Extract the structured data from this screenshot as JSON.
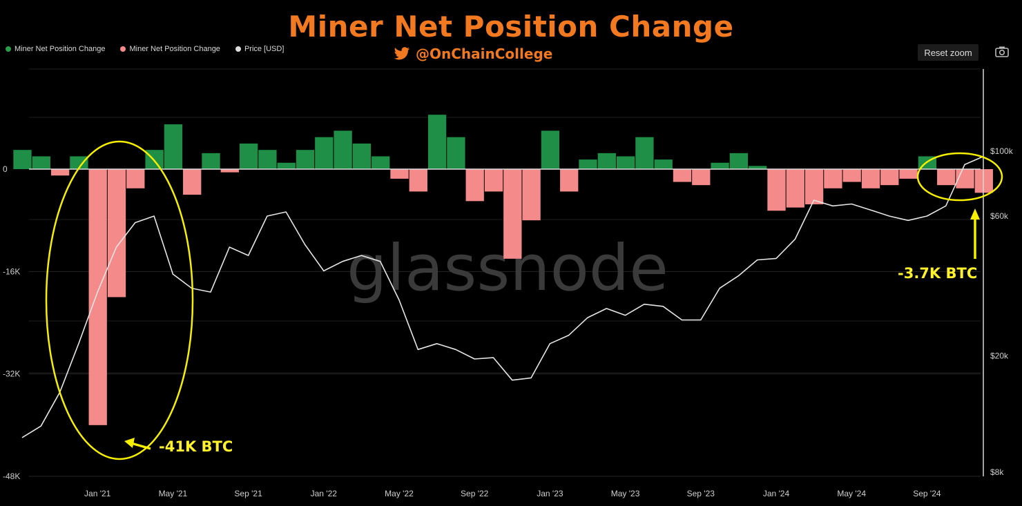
{
  "header": {
    "title": "Miner Net Position Change",
    "handle": "@OnChainCollege",
    "reset_zoom": "Reset zoom"
  },
  "legend": [
    {
      "label": "Miner Net Position Change",
      "color": "#2a9d4a"
    },
    {
      "label": "Miner Net Position Change",
      "color": "#f48a8a"
    },
    {
      "label": "Price [USD]",
      "color": "#dddddd"
    }
  ],
  "watermark": "glassnode",
  "annotations": {
    "left": "-41K BTC",
    "right": "-3.7K BTC"
  },
  "colors": {
    "positive": "#1f8f47",
    "negative": "#f48a8a",
    "price": "#e6e6e6",
    "highlight": "#f6f000",
    "title": "#f37921"
  },
  "chart_data": {
    "type": "bar",
    "title": "Miner Net Position Change",
    "x_ticks": [
      "Jan '21",
      "May '21",
      "Sep '21",
      "Jan '22",
      "May '22",
      "Sep '22",
      "Jan '23",
      "May '23",
      "Sep '23",
      "Jan '24",
      "May '24",
      "Sep '24"
    ],
    "y_left_ticks": [
      "0",
      "-16K",
      "-32K",
      "-48K"
    ],
    "y_left_range": [
      -48000,
      14000
    ],
    "y_right_ticks": [
      "$100k",
      "$60k",
      "$20k",
      "$8k"
    ],
    "y_right_scale": "log",
    "series": [
      {
        "name": "Miner Net Position Change",
        "unit": "BTC",
        "dates": [
          "2020-09",
          "2020-10",
          "2020-11",
          "2020-12",
          "2021-01",
          "2021-02",
          "2021-03",
          "2021-04",
          "2021-05",
          "2021-06",
          "2021-07",
          "2021-08",
          "2021-09",
          "2021-10",
          "2021-11",
          "2021-12",
          "2022-01",
          "2022-02",
          "2022-03",
          "2022-04",
          "2022-05",
          "2022-06",
          "2022-07",
          "2022-08",
          "2022-09",
          "2022-10",
          "2022-11",
          "2022-12",
          "2023-01",
          "2023-02",
          "2023-03",
          "2023-04",
          "2023-05",
          "2023-06",
          "2023-07",
          "2023-08",
          "2023-09",
          "2023-10",
          "2023-11",
          "2023-12",
          "2024-01",
          "2024-02",
          "2024-03",
          "2024-04",
          "2024-05",
          "2024-06",
          "2024-07",
          "2024-08",
          "2024-09",
          "2024-10",
          "2024-11",
          "2024-12"
        ],
        "values": [
          3000,
          2000,
          -1000,
          2000,
          -40000,
          -20000,
          -3000,
          3000,
          7000,
          -4000,
          2500,
          -500,
          4000,
          3000,
          1000,
          3000,
          5000,
          6000,
          4000,
          2000,
          -1500,
          -3500,
          8500,
          5000,
          -5000,
          -3500,
          -14000,
          -8000,
          6000,
          -3500,
          1500,
          2500,
          2000,
          5000,
          1500,
          -2000,
          -2500,
          1000,
          2500,
          500,
          -6500,
          -6000,
          -5500,
          -3000,
          -2000,
          -3000,
          -2500,
          -1500,
          2000,
          -2500,
          -3000,
          -3700
        ]
      },
      {
        "name": "Price [USD]",
        "unit": "USD",
        "dates": [
          "2020-09",
          "2020-10",
          "2020-11",
          "2020-12",
          "2021-01",
          "2021-02",
          "2021-03",
          "2021-04",
          "2021-05",
          "2021-06",
          "2021-07",
          "2021-08",
          "2021-09",
          "2021-10",
          "2021-11",
          "2021-12",
          "2022-01",
          "2022-02",
          "2022-03",
          "2022-04",
          "2022-05",
          "2022-06",
          "2022-07",
          "2022-08",
          "2022-09",
          "2022-10",
          "2022-11",
          "2022-12",
          "2023-01",
          "2023-02",
          "2023-03",
          "2023-04",
          "2023-05",
          "2023-06",
          "2023-07",
          "2023-08",
          "2023-09",
          "2023-10",
          "2023-11",
          "2023-12",
          "2024-01",
          "2024-02",
          "2024-03",
          "2024-04",
          "2024-05",
          "2024-06",
          "2024-07",
          "2024-08",
          "2024-09",
          "2024-10",
          "2024-11",
          "2024-12"
        ],
        "values": [
          10500,
          11500,
          15000,
          22000,
          33000,
          47000,
          57000,
          60000,
          38000,
          34000,
          33000,
          47000,
          44000,
          60000,
          62000,
          48000,
          39000,
          42000,
          44000,
          42000,
          31000,
          21000,
          22000,
          21000,
          19500,
          19700,
          16500,
          16800,
          22000,
          23500,
          27000,
          29000,
          27500,
          30000,
          29500,
          26500,
          26500,
          34000,
          37500,
          42500,
          43000,
          50000,
          68000,
          65000,
          66000,
          63000,
          60000,
          58000,
          60000,
          65000,
          90000,
          96000
        ]
      }
    ]
  }
}
